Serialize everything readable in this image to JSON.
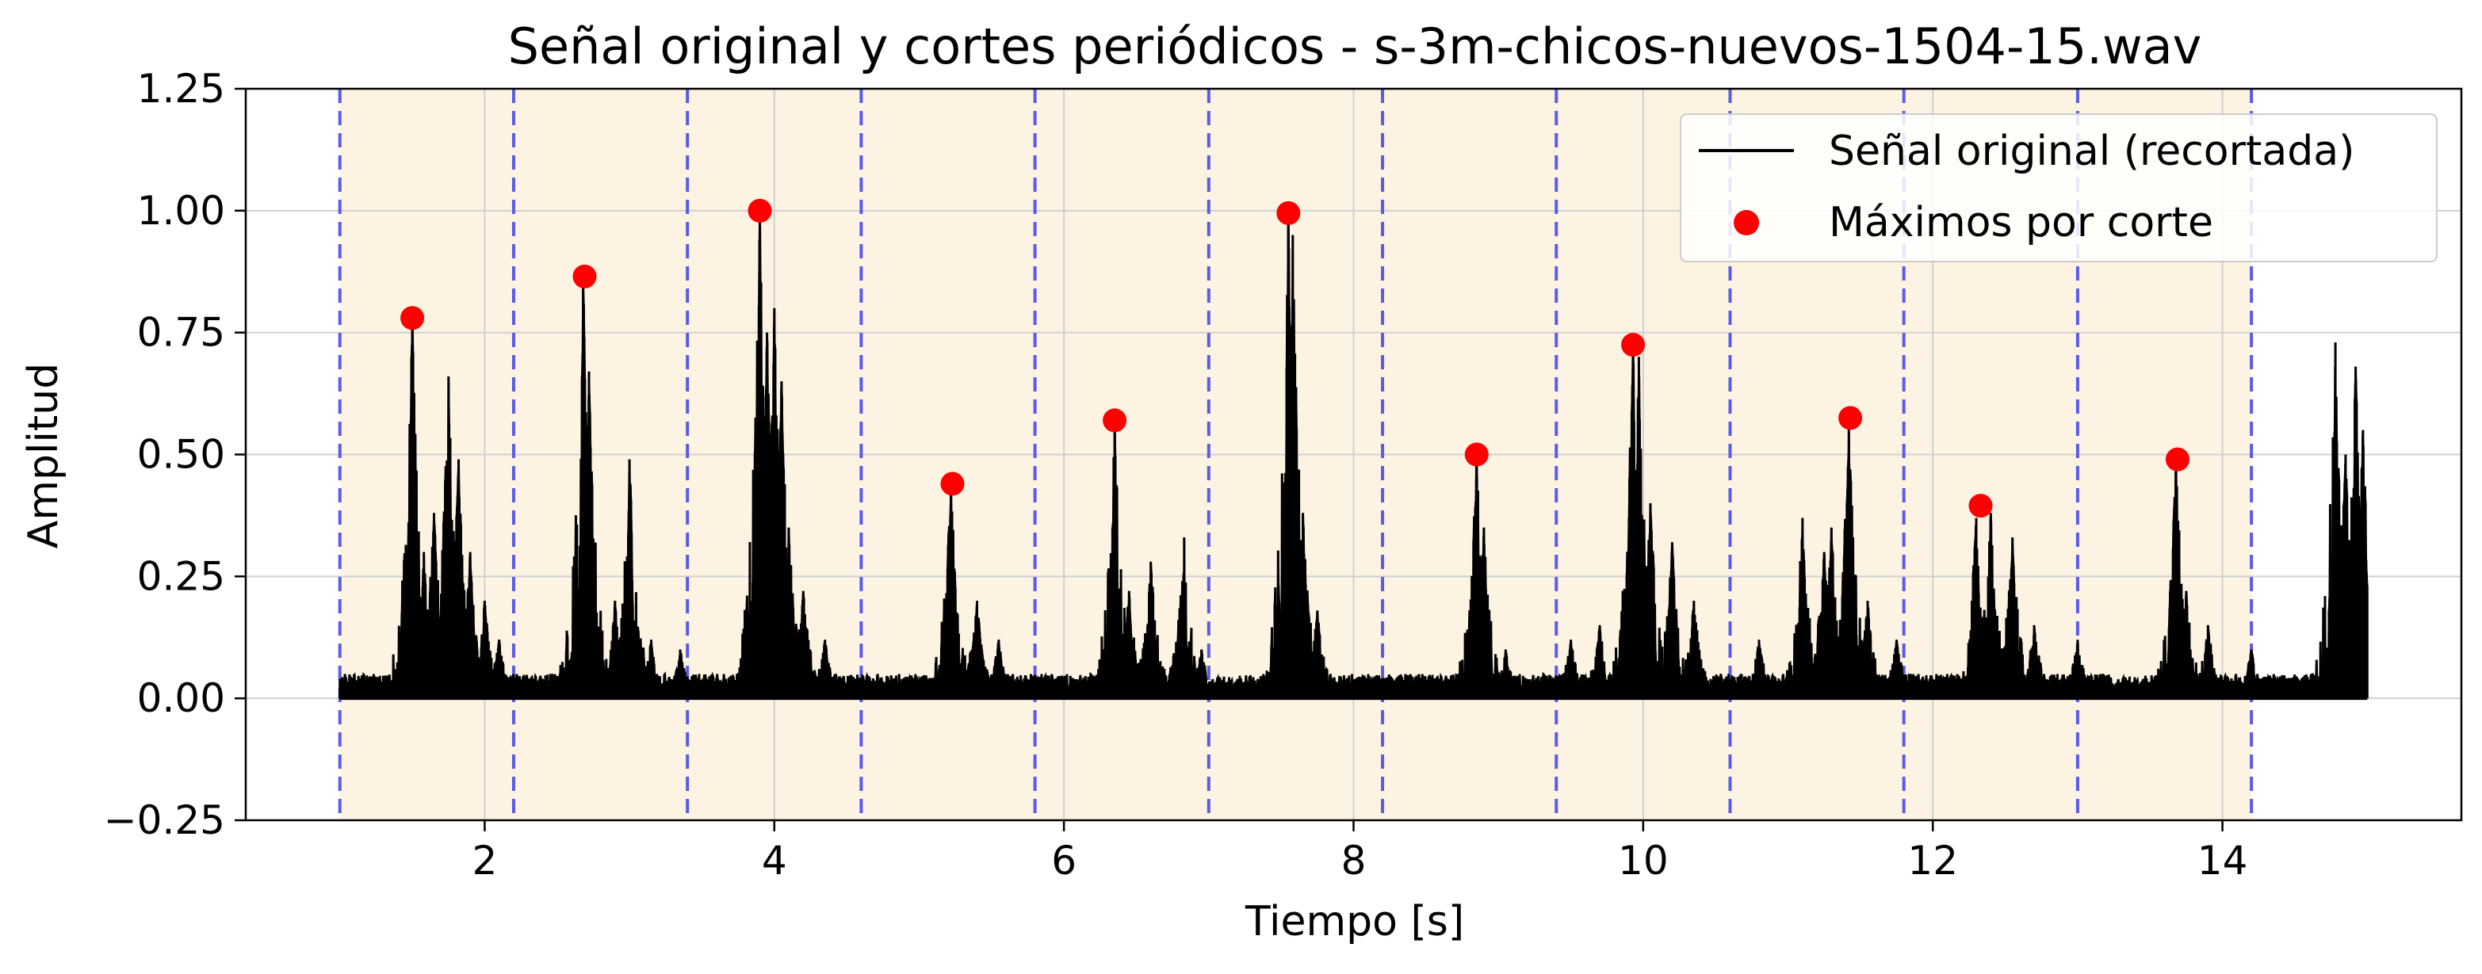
{
  "chart_data": {
    "type": "line",
    "title": "Señal original y cortes periódicos - s-3m-chicos-nuevos-1504-15.wav",
    "xlabel": "Tiempo [s]",
    "ylabel": "Amplitud",
    "xlim": [
      0.35,
      15.65
    ],
    "ylim": [
      -0.25,
      1.25
    ],
    "x_ticks": [
      2,
      4,
      6,
      8,
      10,
      12,
      14
    ],
    "y_ticks": [
      -0.25,
      0.0,
      0.25,
      0.5,
      0.75,
      1.0,
      1.25
    ],
    "y_tick_labels": [
      "−0.25",
      "0.00",
      "0.25",
      "0.50",
      "0.75",
      "1.00",
      "1.25"
    ],
    "grid": true,
    "legend": {
      "position": "top-right",
      "entries": [
        "Señal original (recortada)",
        "Máximos por corte"
      ]
    },
    "signal": {
      "name": "Señal original (recortada)",
      "color": "#000000",
      "x_range": [
        1.0,
        15.0
      ],
      "baseline": 0.02,
      "peaks": [
        [
          1.5,
          0.78
        ],
        [
          1.58,
          0.3
        ],
        [
          1.65,
          0.38
        ],
        [
          1.75,
          0.66
        ],
        [
          1.82,
          0.49
        ],
        [
          1.9,
          0.3
        ],
        [
          2.0,
          0.2
        ],
        [
          2.1,
          0.12
        ],
        [
          2.68,
          0.86
        ],
        [
          2.72,
          0.67
        ],
        [
          2.9,
          0.2
        ],
        [
          3.0,
          0.49
        ],
        [
          3.15,
          0.12
        ],
        [
          3.35,
          0.1
        ],
        [
          3.9,
          1.0
        ],
        [
          3.95,
          0.75
        ],
        [
          4.0,
          0.8
        ],
        [
          4.05,
          0.65
        ],
        [
          4.1,
          0.35
        ],
        [
          4.2,
          0.22
        ],
        [
          4.35,
          0.12
        ],
        [
          5.22,
          0.44
        ],
        [
          5.4,
          0.2
        ],
        [
          5.55,
          0.12
        ],
        [
          6.35,
          0.57
        ],
        [
          6.45,
          0.22
        ],
        [
          6.6,
          0.28
        ],
        [
          6.83,
          0.33
        ],
        [
          6.95,
          0.1
        ],
        [
          7.55,
          1.0
        ],
        [
          7.58,
          0.95
        ],
        [
          7.65,
          0.38
        ],
        [
          7.75,
          0.18
        ],
        [
          8.85,
          0.5
        ],
        [
          8.9,
          0.35
        ],
        [
          9.05,
          0.1
        ],
        [
          9.5,
          0.12
        ],
        [
          9.7,
          0.15
        ],
        [
          9.93,
          0.72
        ],
        [
          9.97,
          0.7
        ],
        [
          10.05,
          0.4
        ],
        [
          10.2,
          0.32
        ],
        [
          10.35,
          0.2
        ],
        [
          10.8,
          0.12
        ],
        [
          11.1,
          0.37
        ],
        [
          11.25,
          0.3
        ],
        [
          11.3,
          0.35
        ],
        [
          11.42,
          0.57
        ],
        [
          11.55,
          0.2
        ],
        [
          11.75,
          0.12
        ],
        [
          12.3,
          0.37
        ],
        [
          12.4,
          0.38
        ],
        [
          12.55,
          0.33
        ],
        [
          12.7,
          0.15
        ],
        [
          13.0,
          0.12
        ],
        [
          13.68,
          0.49
        ],
        [
          13.75,
          0.22
        ],
        [
          13.9,
          0.15
        ],
        [
          14.2,
          0.1
        ],
        [
          14.78,
          0.73
        ],
        [
          14.85,
          0.5
        ],
        [
          14.92,
          0.68
        ],
        [
          14.97,
          0.55
        ]
      ]
    },
    "maxima": {
      "name": "Máximos por corte",
      "color": "#ff0000",
      "x": [
        1.5,
        2.69,
        3.9,
        5.23,
        6.35,
        7.55,
        8.85,
        9.93,
        11.43,
        12.33,
        13.69
      ],
      "y": [
        0.78,
        0.865,
        1.0,
        0.44,
        0.57,
        0.995,
        0.5,
        0.725,
        0.575,
        0.395,
        0.49
      ]
    },
    "cuts": {
      "color": "#5b5bea",
      "x": [
        1.0,
        2.2,
        3.4,
        4.6,
        5.8,
        7.0,
        8.2,
        9.4,
        10.6,
        11.8,
        13.0,
        14.2
      ]
    },
    "shading_color": "#fdf3e3"
  }
}
